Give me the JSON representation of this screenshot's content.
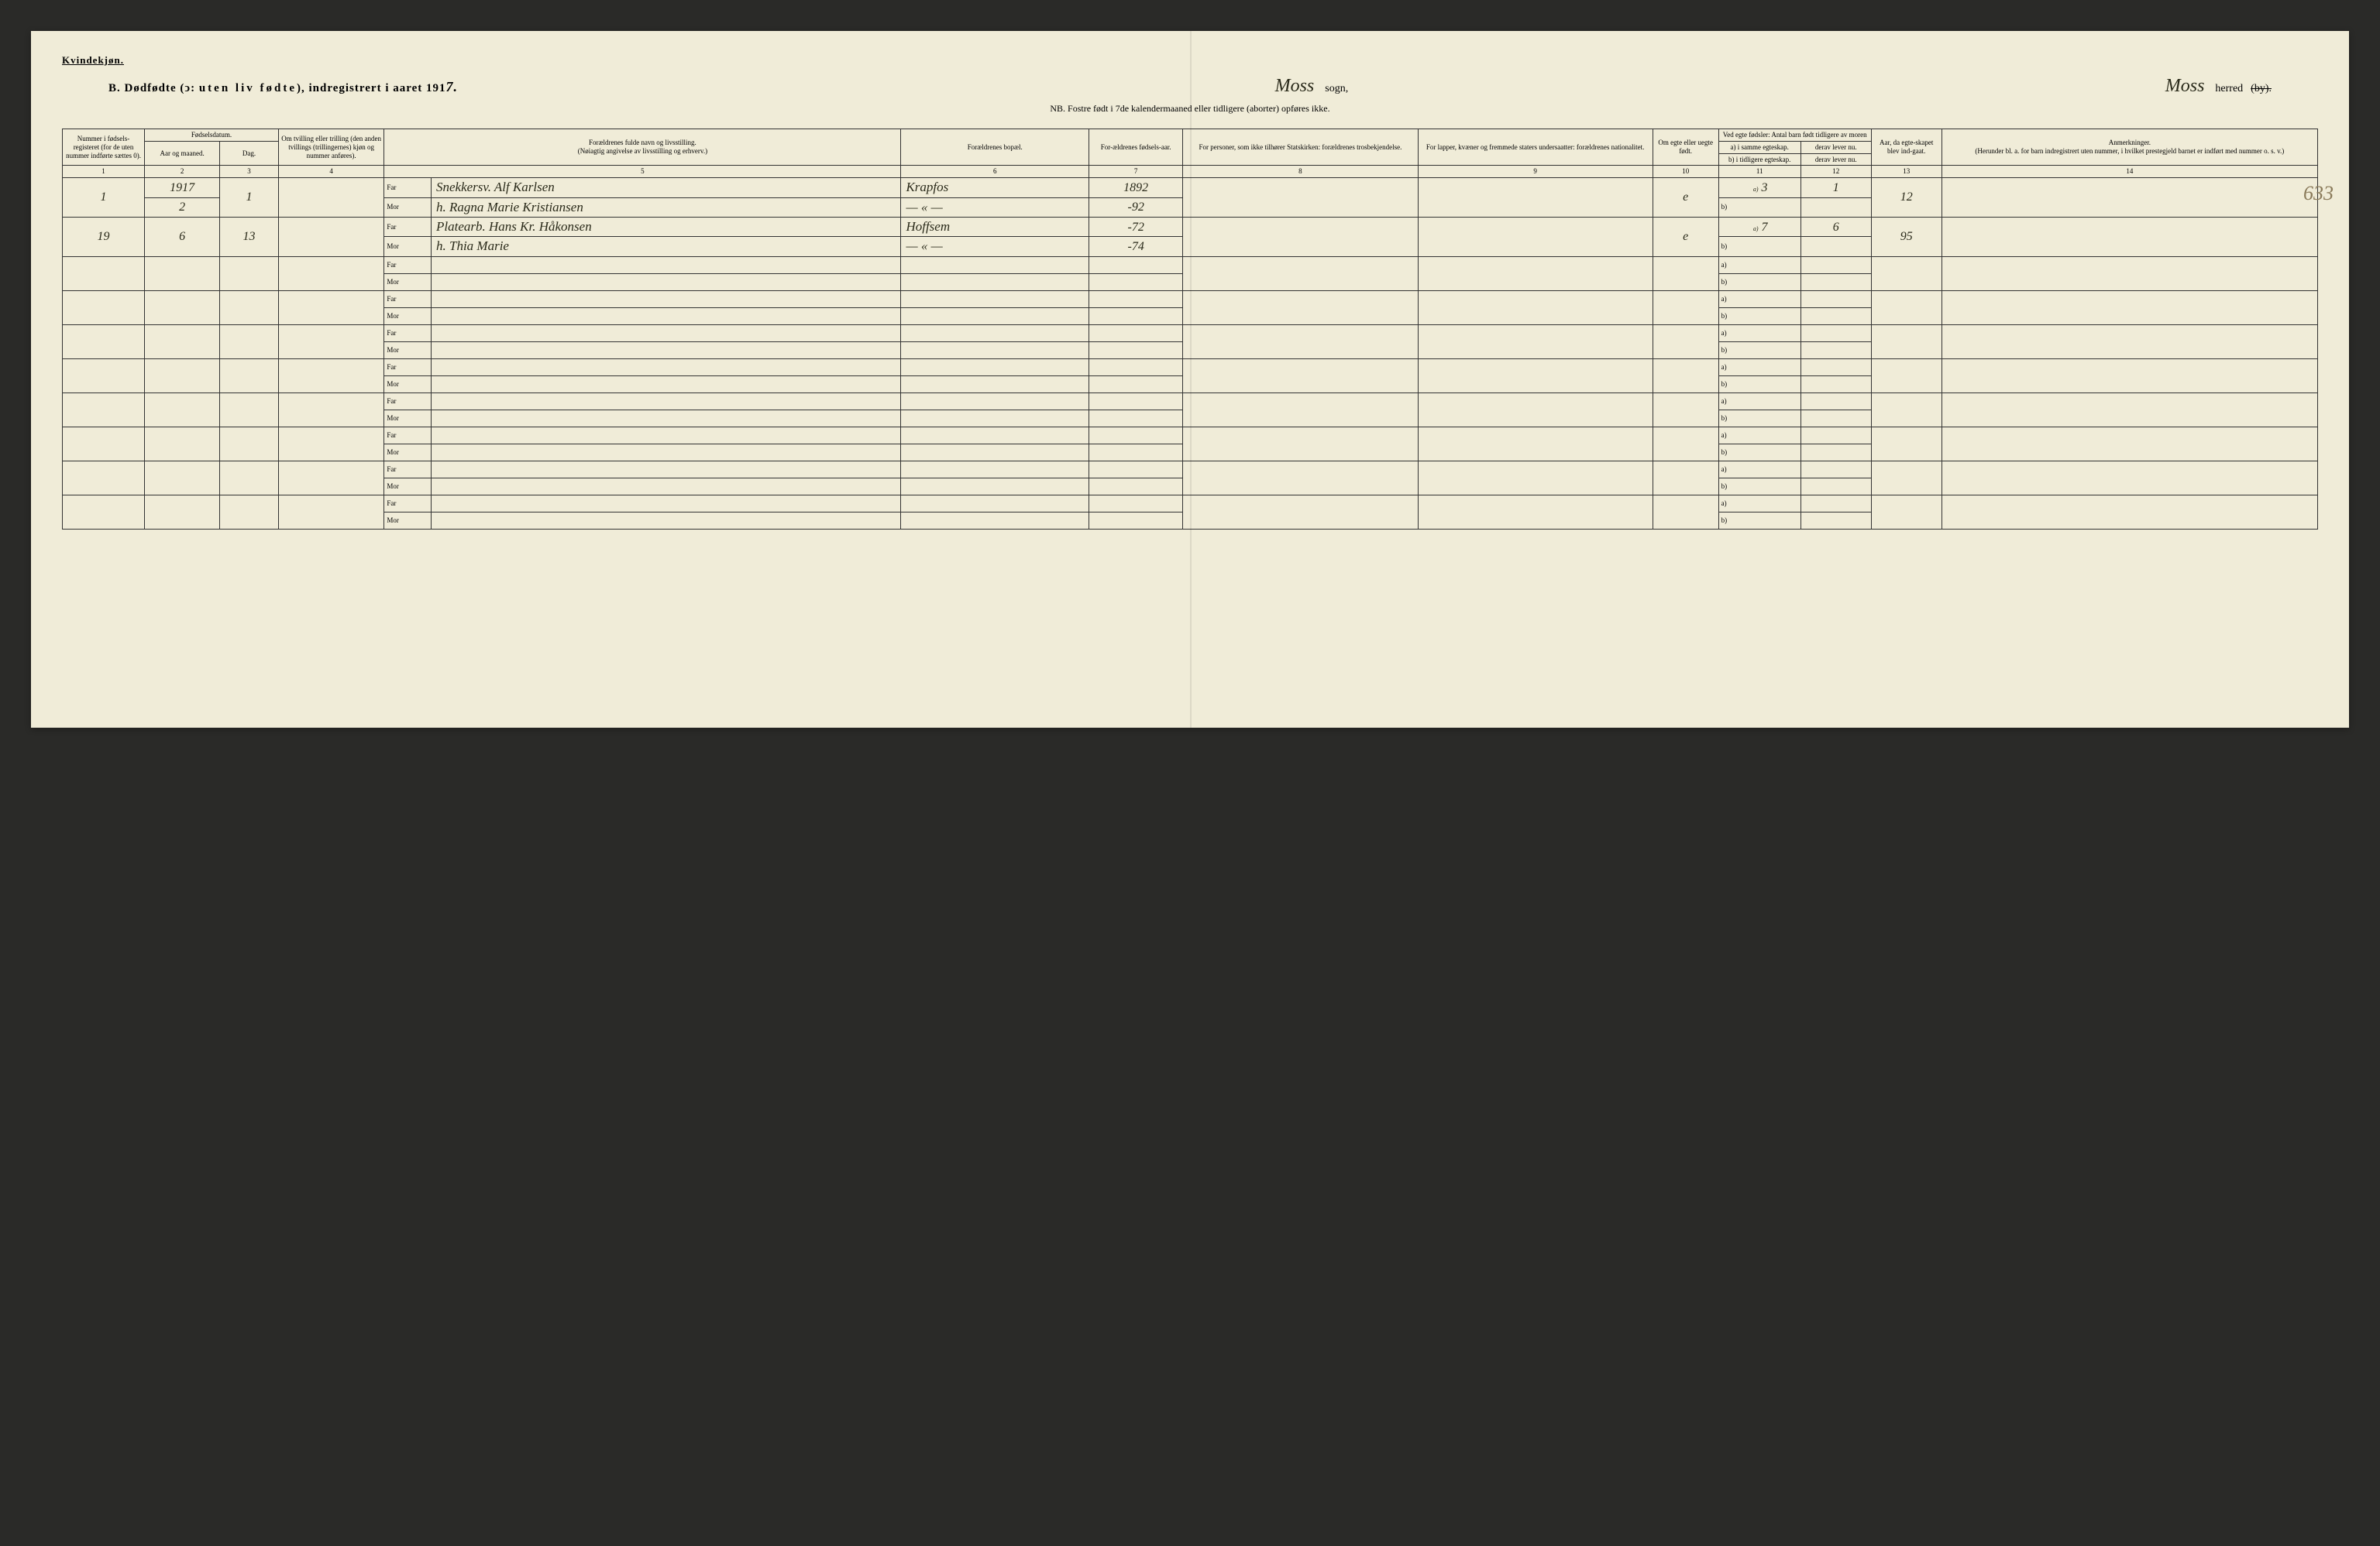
{
  "page": {
    "background_color": "#f0ecd8",
    "ink_color": "#2a2a1a",
    "border_color": "#333333"
  },
  "header": {
    "gender": "Kvindekjøn.",
    "title_prefix": "B. Dødfødte (ↄ:",
    "title_spaced": "uten liv fødte",
    "title_suffix": "), indregistrert i aaret 191",
    "year_suffix_hw": "7.",
    "sogn_hw": "Moss",
    "sogn_label": "sogn,",
    "herred_hw": "Moss",
    "herred_label": "herred",
    "herred_strike": "(by).",
    "nb": "NB. Fostre født i 7de kalendermaaned eller tidligere (aborter) opføres ikke."
  },
  "columns": {
    "c1": "Nummer i fødsels-registeret (for de uten nummer indførte sættes 0).",
    "c2_group": "Fødselsdatum.",
    "c2a": "Aar og maaned.",
    "c2b": "Dag.",
    "c4": "Om tvilling eller trilling (den anden tvillings (trillingernes) kjøn og nummer anføres).",
    "c56_top": "Forældrenes fulde navn og livsstilling.",
    "c56_sub": "(Nøiagtig angivelse av livsstilling og erhverv.)",
    "c6": "Forældrenes bopæl.",
    "c7": "For-ældrenes fødsels-aar.",
    "c8": "For personer, som ikke tilhører Statskirken: forældrenes trosbekjendelse.",
    "c9": "For lapper, kvæner og fremmede staters undersaatter: forældrenes nationalitet.",
    "c10": "Om egte eller uegte født.",
    "c11_12_top": "Ved egte fødsler: Antal barn født tidligere av moren",
    "c11a": "a) i samme egteskap.",
    "c11b": "b) i tidligere egteskap.",
    "c12a": "derav lever nu.",
    "c12b": "derav lever nu.",
    "c13": "Aar, da egte-skapet blev ind-gaat.",
    "c14_top": "Anmerkninger.",
    "c14_sub": "(Herunder bl. a. for barn indregistrert uten nummer, i hvilket prestegjeld barnet er indført med nummer o. s. v.)",
    "far": "Far",
    "mor": "Mor",
    "a_label": "a)",
    "b_label": "b)"
  },
  "colnums": [
    "1",
    "2",
    "3",
    "4",
    "5",
    "6",
    "7",
    "8",
    "9",
    "10",
    "11",
    "12",
    "13",
    "14"
  ],
  "rows": [
    {
      "nummer": "1",
      "year_line": "1917",
      "aar_mnd": "2",
      "dag": "1",
      "far_navn": "Snekkersv. Alf Karlsen",
      "far_bopel": "Krapfos",
      "far_fodeaar": "1892",
      "mor_navn": "h. Ragna Marie Kristiansen",
      "mor_bopel": "— « —",
      "mor_fodeaar": "-92",
      "egte": "e",
      "a_samme": "3",
      "a_lever": "1",
      "egte_aar": "12"
    },
    {
      "nummer": "19",
      "aar_mnd": "6",
      "dag": "13",
      "far_navn": "Platearb. Hans Kr. Håkonsen",
      "far_bopel": "Hoffsem",
      "far_fodeaar": "-72",
      "mor_navn": "h. Thia Marie",
      "mor_bopel": "— « —",
      "mor_fodeaar": "-74",
      "egte": "e",
      "a_samme": "7",
      "a_lever": "6",
      "egte_aar": "95"
    }
  ],
  "margin_note": "633",
  "empty_row_count": 8
}
